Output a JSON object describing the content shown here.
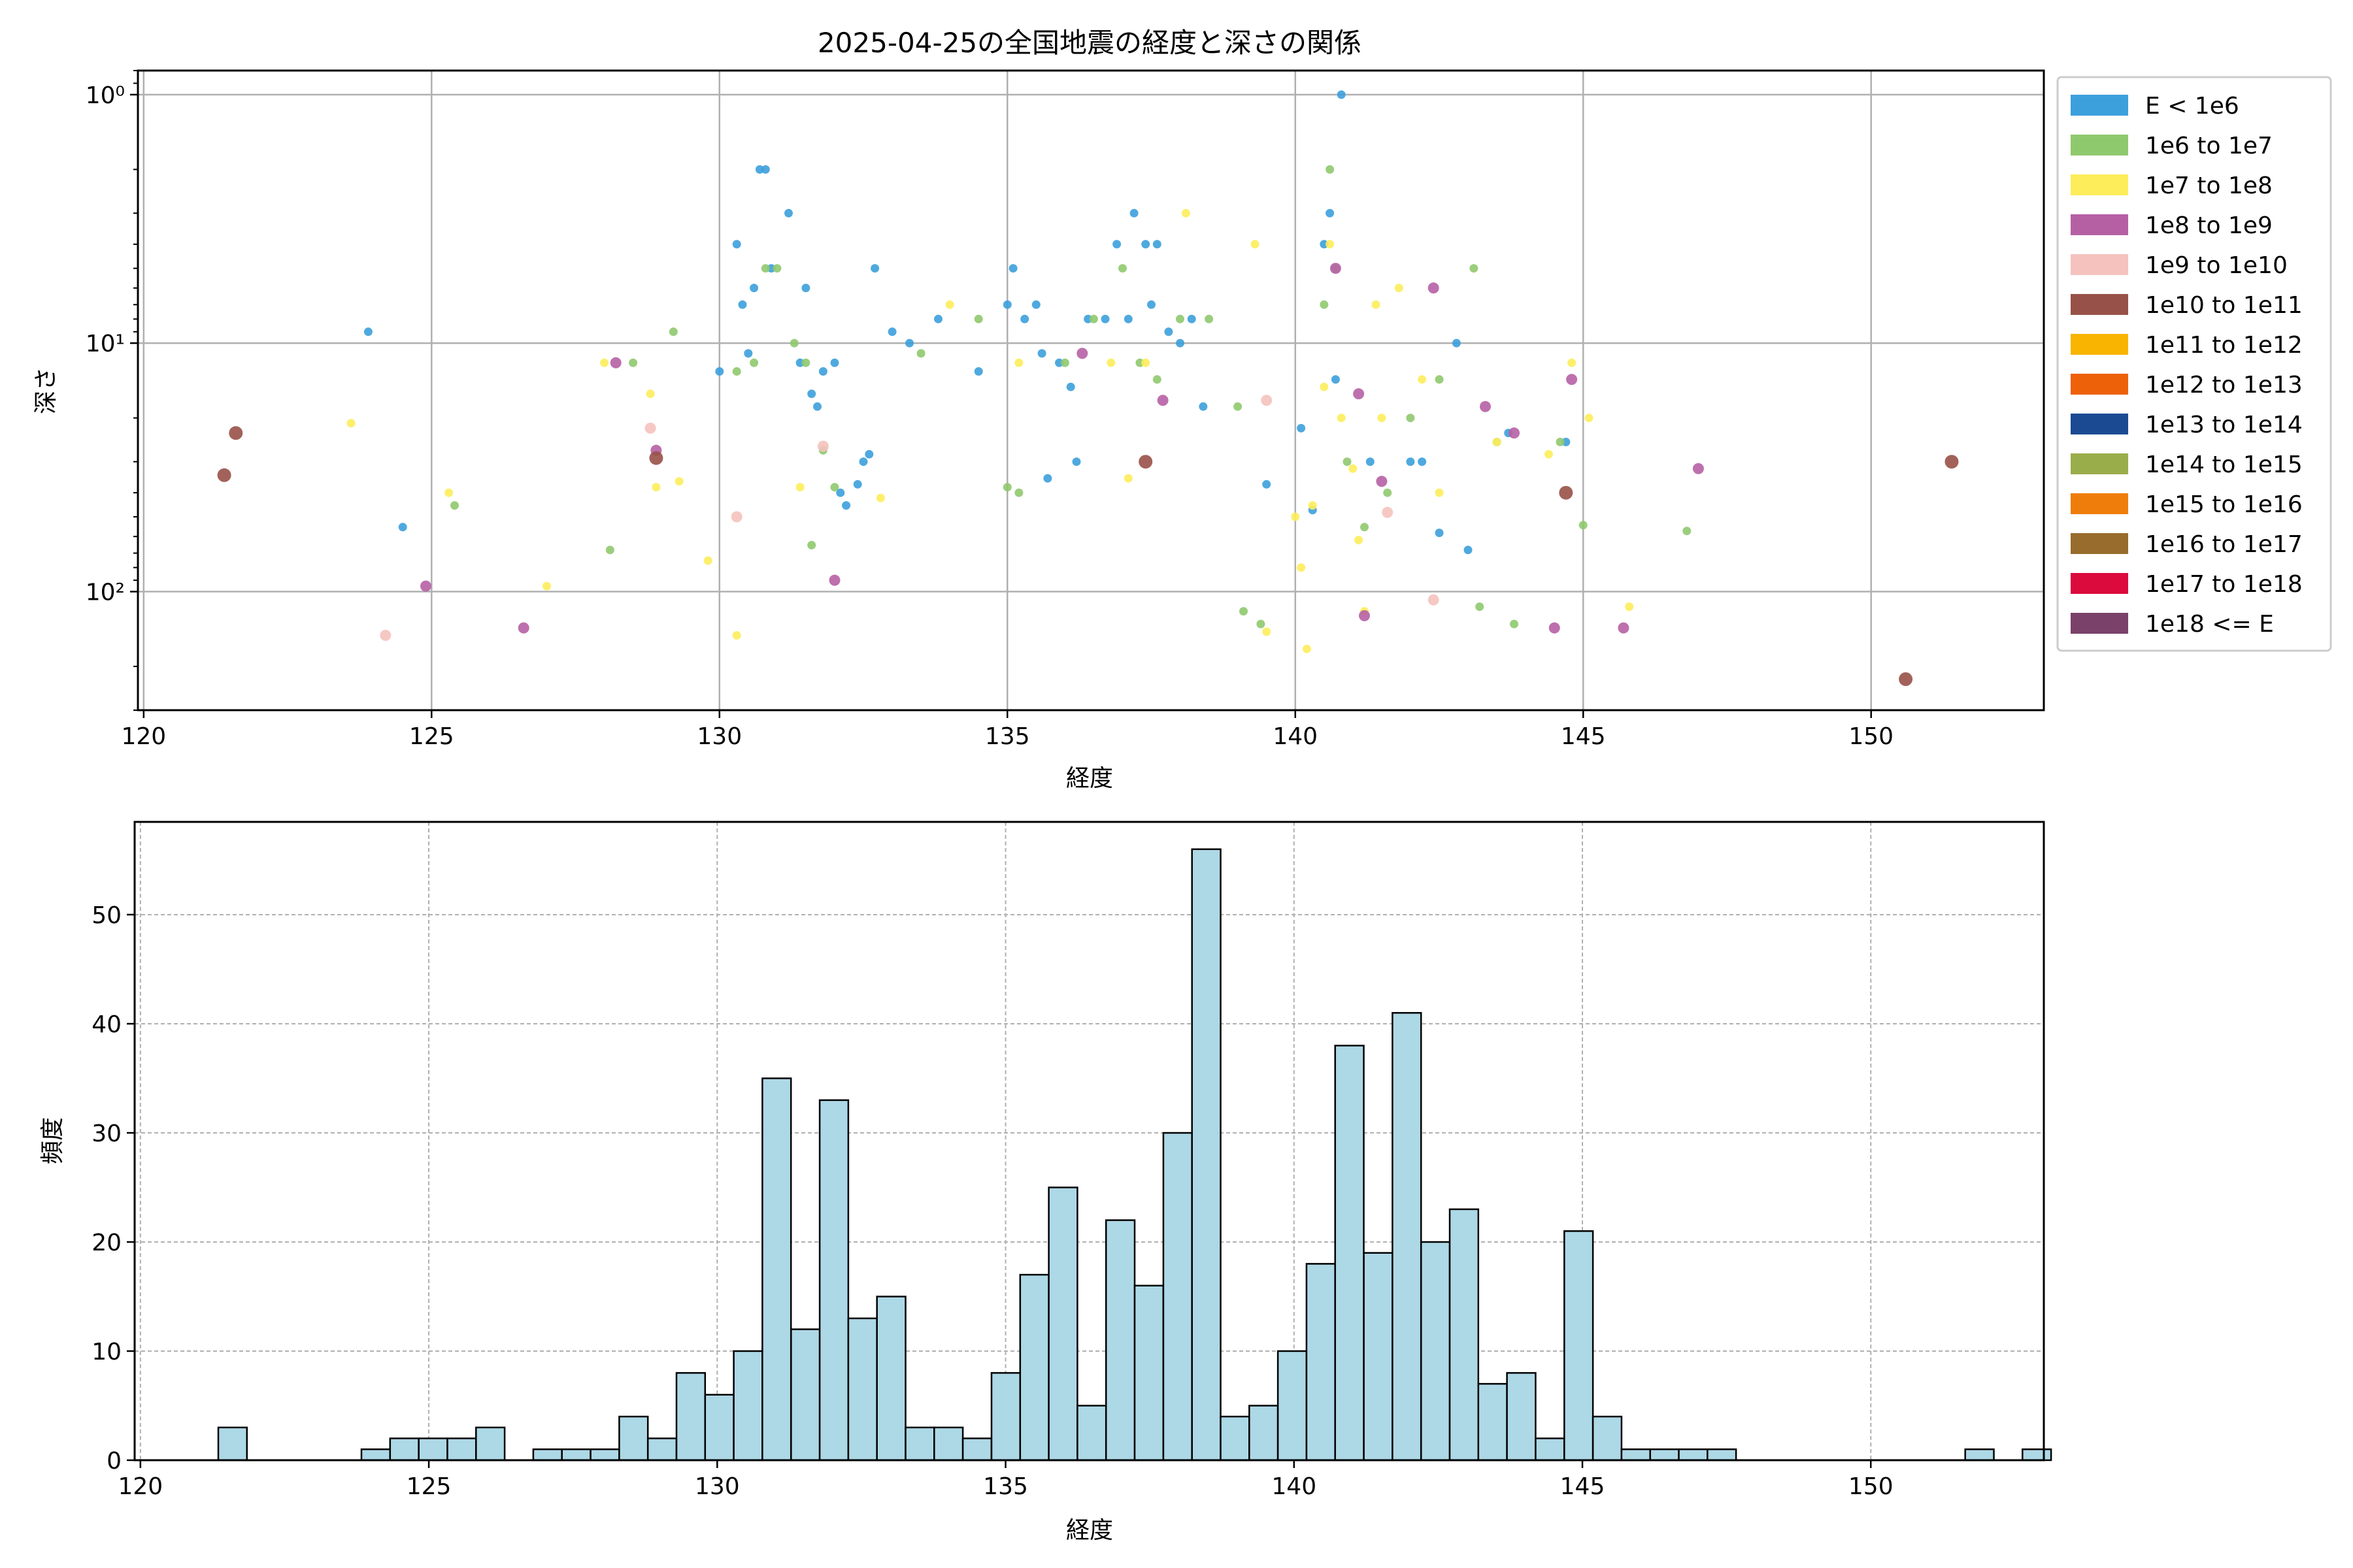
{
  "chart_data": [
    {
      "type": "scatter",
      "title": "2025-04-25の全国地震の経度と深さの関係",
      "xlabel": "経度",
      "ylabel": "深さ",
      "xlim": [
        119.9,
        153.0
      ],
      "ylim": [
        300,
        0.8
      ],
      "yscale": "log",
      "y_inverted": true,
      "grid": true,
      "legend_placement": "outside-right",
      "xticks": [
        120,
        125,
        130,
        135,
        140,
        145,
        150
      ],
      "xtick_labels": [
        "120",
        "125",
        "130",
        "135",
        "140",
        "145",
        "150"
      ],
      "yticks": [
        1,
        10,
        100
      ],
      "ytick_labels": [
        "10⁰",
        "10¹",
        "10²"
      ],
      "legend": [
        {
          "label": "E < 1e6",
          "color": "#3ca0dc"
        },
        {
          "label": "1e6 to 1e7",
          "color": "#8fc96e"
        },
        {
          "label": "1e7 to 1e8",
          "color": "#fded5b"
        },
        {
          "label": "1e8 to 1e9",
          "color": "#b660a4"
        },
        {
          "label": "1e9 to 1e10",
          "color": "#f5c2bd"
        },
        {
          "label": "1e10 to 1e11",
          "color": "#985148"
        },
        {
          "label": "1e11 to 1e12",
          "color": "#f8b400"
        },
        {
          "label": "1e12 to 1e13",
          "color": "#ed6109"
        },
        {
          "label": "1e13 to 1e14",
          "color": "#1b4a93"
        },
        {
          "label": "1e14 to 1e15",
          "color": "#9aad4b"
        },
        {
          "label": "1e15 to 1e16",
          "color": "#ef7d0b"
        },
        {
          "label": "1e16 to 1e17",
          "color": "#986c2c"
        },
        {
          "label": "1e17 to 1e18",
          "color": "#db0b3d"
        },
        {
          "label": "1e18 <= E",
          "color": "#7a416a"
        }
      ],
      "series": [
        {
          "color": "#3ca0dc",
          "size": "small",
          "points": [
            [
              123.9,
              9
            ],
            [
              124.5,
              55
            ],
            [
              130,
              13
            ],
            [
              130.3,
              4
            ],
            [
              130.4,
              7
            ],
            [
              130.5,
              11
            ],
            [
              130.6,
              6
            ],
            [
              130.7,
              2
            ],
            [
              130.8,
              2
            ],
            [
              130.9,
              5
            ],
            [
              131.2,
              3
            ],
            [
              131.4,
              12
            ],
            [
              131.5,
              6
            ],
            [
              131.6,
              16
            ],
            [
              131.7,
              18
            ],
            [
              131.8,
              13
            ],
            [
              132,
              12
            ],
            [
              132.1,
              40
            ],
            [
              132.2,
              45
            ],
            [
              132.4,
              37
            ],
            [
              132.5,
              30
            ],
            [
              132.6,
              28
            ],
            [
              132.7,
              5
            ],
            [
              133,
              9
            ],
            [
              133.3,
              10
            ],
            [
              133.8,
              8
            ],
            [
              134.5,
              13
            ],
            [
              135,
              7
            ],
            [
              135.1,
              5
            ],
            [
              135.3,
              8
            ],
            [
              135.5,
              7
            ],
            [
              135.6,
              11
            ],
            [
              135.7,
              35
            ],
            [
              135.9,
              12
            ],
            [
              136.1,
              15
            ],
            [
              136.2,
              30
            ],
            [
              136.4,
              8
            ],
            [
              136.7,
              8
            ],
            [
              136.9,
              4
            ],
            [
              137.1,
              8
            ],
            [
              137.2,
              3
            ],
            [
              137.4,
              4
            ],
            [
              137.5,
              7
            ],
            [
              137.6,
              4
            ],
            [
              137.8,
              9
            ],
            [
              138,
              10
            ],
            [
              138.2,
              8
            ],
            [
              138.4,
              18
            ],
            [
              139.5,
              37
            ],
            [
              140.1,
              22
            ],
            [
              140.3,
              47
            ],
            [
              140.5,
              4
            ],
            [
              140.6,
              3
            ],
            [
              140.7,
              14
            ],
            [
              140.8,
              1
            ],
            [
              141.3,
              30
            ],
            [
              142,
              30
            ],
            [
              142.2,
              30
            ],
            [
              142.5,
              58
            ],
            [
              142.8,
              10
            ],
            [
              143,
              68
            ],
            [
              143.7,
              23
            ],
            [
              144.7,
              25
            ]
          ]
        },
        {
          "color": "#8fc96e",
          "size": "small",
          "points": [
            [
              125.4,
              45
            ],
            [
              128.1,
              68
            ],
            [
              128.5,
              12
            ],
            [
              129.2,
              9
            ],
            [
              130.3,
              13
            ],
            [
              130.6,
              12
            ],
            [
              130.8,
              5
            ],
            [
              131,
              5
            ],
            [
              131.3,
              10
            ],
            [
              131.5,
              12
            ],
            [
              131.6,
              65
            ],
            [
              131.8,
              27
            ],
            [
              132,
              38
            ],
            [
              133.5,
              11
            ],
            [
              134.5,
              8
            ],
            [
              135,
              38
            ],
            [
              135.2,
              40
            ],
            [
              136,
              12
            ],
            [
              136.5,
              8
            ],
            [
              137,
              5
            ],
            [
              137.3,
              12
            ],
            [
              137.6,
              14
            ],
            [
              138,
              8
            ],
            [
              138.5,
              8
            ],
            [
              139,
              18
            ],
            [
              139.1,
              120
            ],
            [
              139.4,
              135
            ],
            [
              140.5,
              7
            ],
            [
              140.6,
              2
            ],
            [
              140.7,
              5
            ],
            [
              140.9,
              30
            ],
            [
              141.2,
              55
            ],
            [
              141.6,
              40
            ],
            [
              142,
              20
            ],
            [
              142.5,
              14
            ],
            [
              143.1,
              5
            ],
            [
              143.2,
              115
            ],
            [
              143.5,
              25
            ],
            [
              143.8,
              135
            ],
            [
              144.6,
              25
            ],
            [
              145,
              54
            ],
            [
              146.8,
              57
            ]
          ]
        },
        {
          "color": "#fded5b",
          "size": "small",
          "points": [
            [
              123.6,
              21
            ],
            [
              125.3,
              40
            ],
            [
              127,
              95
            ],
            [
              128,
              12
            ],
            [
              128.8,
              16
            ],
            [
              128.9,
              38
            ],
            [
              129.3,
              36
            ],
            [
              129.8,
              75
            ],
            [
              130.3,
              150
            ],
            [
              131.4,
              38
            ],
            [
              132.8,
              42
            ],
            [
              134,
              7
            ],
            [
              135.2,
              12
            ],
            [
              136.8,
              12
            ],
            [
              137.1,
              35
            ],
            [
              137.4,
              12
            ],
            [
              138.1,
              3
            ],
            [
              139.3,
              4
            ],
            [
              139.5,
              145
            ],
            [
              140,
              50
            ],
            [
              140.1,
              80
            ],
            [
              140.2,
              170
            ],
            [
              140.3,
              45
            ],
            [
              140.5,
              15
            ],
            [
              140.6,
              4
            ],
            [
              140.8,
              20
            ],
            [
              141,
              32
            ],
            [
              141.1,
              62
            ],
            [
              141.2,
              120
            ],
            [
              141.4,
              7
            ],
            [
              141.5,
              20
            ],
            [
              141.8,
              6
            ],
            [
              142.2,
              14
            ],
            [
              142.5,
              40
            ],
            [
              143.5,
              25
            ],
            [
              144.4,
              28
            ],
            [
              144.8,
              12
            ],
            [
              145.1,
              20
            ],
            [
              145.8,
              115
            ]
          ]
        },
        {
          "color": "#b660a4",
          "size": "medium",
          "points": [
            [
              124.9,
              95
            ],
            [
              126.6,
              140
            ],
            [
              128.2,
              12
            ],
            [
              128.9,
              27
            ],
            [
              132,
              90
            ],
            [
              136.3,
              11
            ],
            [
              137.7,
              17
            ],
            [
              140.7,
              5
            ],
            [
              141.1,
              16
            ],
            [
              141.2,
              125
            ],
            [
              141.5,
              36
            ],
            [
              142.4,
              6
            ],
            [
              143.3,
              18
            ],
            [
              143.8,
              23
            ],
            [
              144.5,
              140
            ],
            [
              144.8,
              14
            ],
            [
              145.7,
              140
            ],
            [
              147,
              32
            ]
          ]
        },
        {
          "color": "#f5c2bd",
          "size": "medium",
          "points": [
            [
              124.2,
              150
            ],
            [
              128.8,
              22
            ],
            [
              130.3,
              50
            ],
            [
              131.8,
              26
            ],
            [
              139.5,
              17
            ],
            [
              141.6,
              48
            ],
            [
              142.4,
              108
            ]
          ]
        },
        {
          "color": "#985148",
          "size": "large",
          "points": [
            [
              121.4,
              34
            ],
            [
              121.6,
              23
            ],
            [
              128.9,
              29
            ],
            [
              137.4,
              30
            ],
            [
              144.7,
              40
            ],
            [
              150.6,
              225
            ],
            [
              151.4,
              30
            ]
          ]
        }
      ]
    },
    {
      "type": "bar",
      "title": "",
      "xlabel": "経度",
      "ylabel": "頻度",
      "xlim": [
        119.9,
        153.0
      ],
      "ylim": [
        0,
        58.5
      ],
      "grid": true,
      "grid_style": "dashed",
      "bar_color": "#add8e6",
      "edge_color": "#000000",
      "xticks": [
        120,
        125,
        130,
        135,
        140,
        145,
        150
      ],
      "xtick_labels": [
        "120",
        "125",
        "130",
        "135",
        "140",
        "145",
        "150"
      ],
      "yticks": [
        0,
        10,
        20,
        30,
        40,
        50
      ],
      "ytick_labels": [
        "0",
        "10",
        "20",
        "30",
        "40",
        "50"
      ],
      "bin_start": 121.35,
      "bin_width": 0.4965,
      "values": [
        3,
        0,
        0,
        0,
        0,
        1,
        2,
        2,
        2,
        3,
        0,
        1,
        1,
        1,
        4,
        2,
        8,
        6,
        10,
        35,
        12,
        33,
        13,
        15,
        3,
        3,
        2,
        8,
        17,
        25,
        5,
        22,
        16,
        30,
        56,
        4,
        5,
        10,
        18,
        38,
        19,
        41,
        20,
        23,
        7,
        8,
        2,
        21,
        4,
        1,
        1,
        1,
        1,
        0,
        0,
        0,
        0,
        0,
        0,
        0,
        0,
        1,
        0,
        1
      ]
    }
  ]
}
